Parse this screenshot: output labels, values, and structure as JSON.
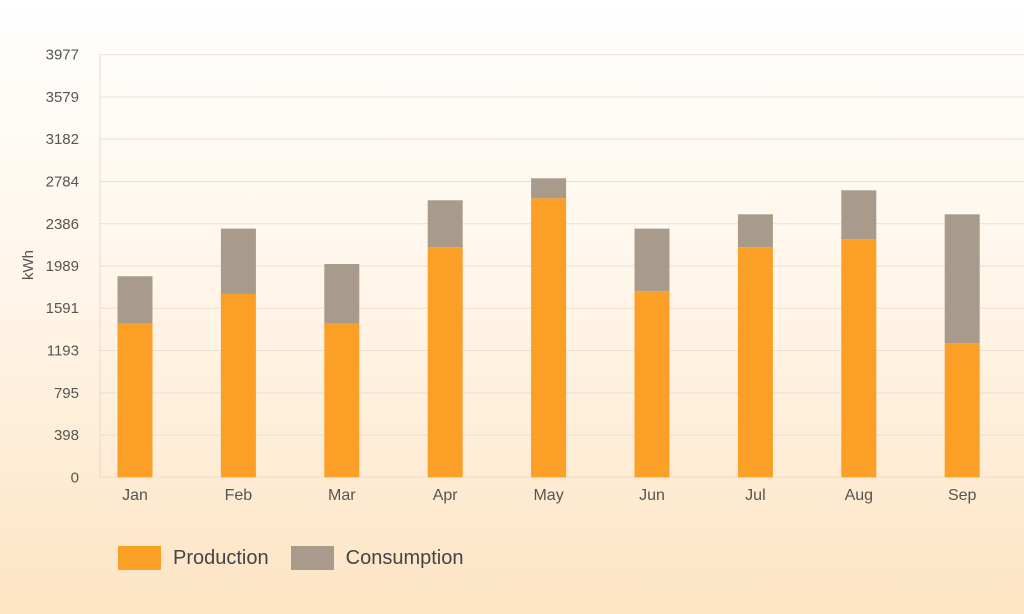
{
  "chart_data": {
    "type": "bar",
    "stacked": true,
    "categories": [
      "Jan",
      "Feb",
      "Mar",
      "Apr",
      "May",
      "Jun",
      "Jul",
      "Aug",
      "Sep"
    ],
    "series": [
      {
        "name": "Production",
        "color": "#fb9f26",
        "values": [
          1446,
          1725,
          1446,
          2165,
          2626,
          1751,
          2165,
          2240,
          1261
        ]
      },
      {
        "name": "Consumption",
        "color": "#a89b8b",
        "values": [
          446,
          615,
          561,
          442,
          188,
          589,
          310,
          461,
          1214
        ]
      }
    ],
    "ylabel": "kWh",
    "xlabel": "",
    "ylim": [
      0,
      3977
    ],
    "yticks": [
      "0",
      "398",
      "795",
      "1193",
      "1591",
      "1989",
      "2386",
      "2784",
      "3182",
      "3579",
      "3977"
    ],
    "grid": true,
    "legend": "bottom-left"
  }
}
